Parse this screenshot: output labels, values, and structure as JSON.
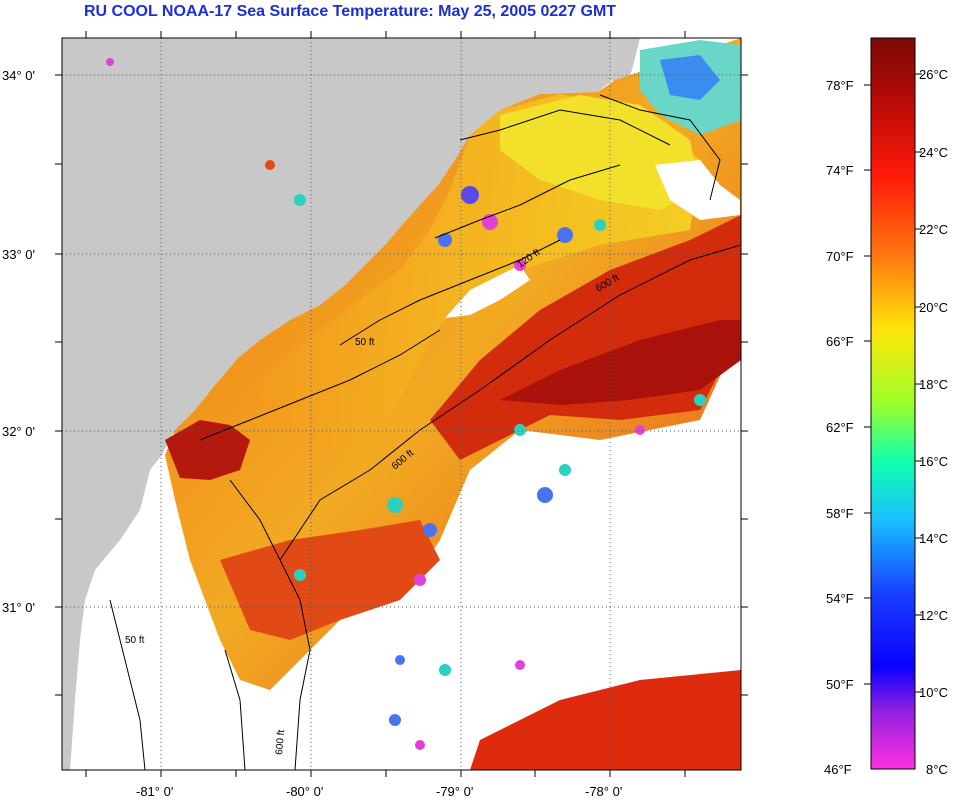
{
  "title": "RU COOL  NOAA-17  Sea Surface Temperature:  May 25, 2005 0227 GMT",
  "latitude_labels": [
    "34° 0'",
    "33° 0'",
    "32° 0'",
    "31° 0'"
  ],
  "longitude_labels": [
    "-81° 0'",
    "-80° 0'",
    "-79° 0'",
    "-78° 0'"
  ],
  "contour_labels": [
    "50 ft",
    "120 ft",
    "600 ft"
  ],
  "colorbar": {
    "fahrenheit_labels": [
      "78°F",
      "74°F",
      "70°F",
      "66°F",
      "62°F",
      "58°F",
      "54°F",
      "50°F",
      "46°F"
    ],
    "celsius_labels": [
      "26°C",
      "24°C",
      "22°C",
      "20°C",
      "18°C",
      "16°C",
      "14°C",
      "12°C",
      "10°C",
      "8°C"
    ]
  },
  "colors": {
    "land": "#c8c8c8",
    "title": "#1b2fd6",
    "warm": "#d42a0c",
    "hot": "#a60f0a",
    "mid": "#f07a14",
    "cool": "#f5d21a"
  }
}
